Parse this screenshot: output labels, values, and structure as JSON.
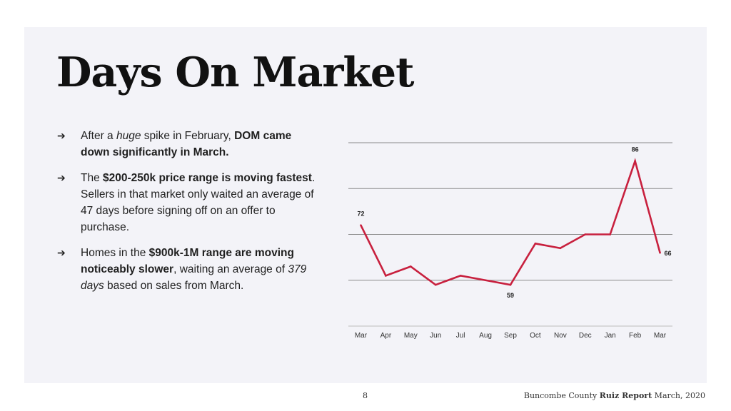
{
  "slide": {
    "title": "Days On Market",
    "bullets": [
      [
        {
          "t": "After a "
        },
        {
          "t": "huge",
          "i": true
        },
        {
          "t": " spike in February, "
        },
        {
          "t": "DOM came down significantly in March.",
          "b": true
        }
      ],
      [
        {
          "t": "The "
        },
        {
          "t": "$200-250k price range is moving fastest",
          "b": true
        },
        {
          "t": ". Sellers in that market only waited an average of 47 days before signing off on an offer to purchase."
        }
      ],
      [
        {
          "t": "Homes in the "
        },
        {
          "t": "$900k-1M range are moving noticeably slower",
          "b": true
        },
        {
          "t": ", waiting an average of "
        },
        {
          "t": "379 days",
          "i": true
        },
        {
          "t": " based on sales from March."
        }
      ]
    ],
    "bullet_glyph": "➔",
    "footer": {
      "page": "8",
      "pre": "Buncombe County ",
      "bold": "Ruiz Report",
      "post": " March, 2020"
    }
  },
  "chart_data": {
    "type": "line",
    "categories": [
      "Mar",
      "Apr",
      "May",
      "Jun",
      "Jul",
      "Aug",
      "Sep",
      "Oct",
      "Nov",
      "Dec",
      "Jan",
      "Feb",
      "Mar"
    ],
    "series": [
      {
        "values": [
          72,
          61,
          63,
          59,
          61,
          60,
          59,
          68,
          67,
          70,
          70,
          86,
          66
        ],
        "color": "#c8203e"
      }
    ],
    "data_labels": [
      {
        "index": 0,
        "text": "72"
      },
      {
        "index": 6,
        "text": "59"
      },
      {
        "index": 11,
        "text": "86"
      },
      {
        "index": 12,
        "text": "66"
      }
    ],
    "ylim": [
      50,
      90
    ],
    "gridlines": [
      60,
      70,
      80,
      90
    ],
    "grid": true,
    "y_tick_labels": false,
    "title": "",
    "xlabel": "",
    "ylabel": ""
  }
}
